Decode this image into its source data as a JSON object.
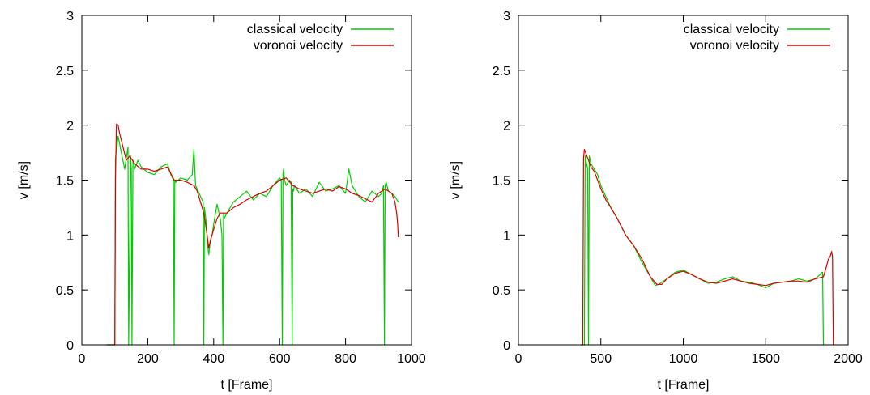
{
  "chart_data": [
    {
      "type": "line",
      "xlabel": "t [Frame]",
      "ylabel": "v [m/s]",
      "xlim": [
        0,
        1000
      ],
      "ylim": [
        0,
        3
      ],
      "xticks": [
        0,
        200,
        400,
        600,
        800,
        1000
      ],
      "yticks": [
        0,
        0.5,
        1,
        1.5,
        2,
        2.5,
        3
      ],
      "xtick_labels": [
        "0",
        "200",
        "400",
        "600",
        "800",
        "1000"
      ],
      "ytick_labels": [
        "0",
        "0.5",
        "1",
        "1.5",
        "2",
        "2.5",
        "3"
      ],
      "legend_position": "top-right",
      "grid": false,
      "series": [
        {
          "name": "classical velocity",
          "color": "#00cc00",
          "x": [
            75,
            100,
            102,
            110,
            120,
            130,
            135,
            140,
            142,
            148,
            150,
            152,
            155,
            158,
            160,
            170,
            180,
            200,
            220,
            240,
            260,
            270,
            278,
            280,
            282,
            285,
            300,
            320,
            335,
            340,
            345,
            350,
            360,
            368,
            370,
            372,
            378,
            380,
            385,
            390,
            395,
            400,
            410,
            420,
            425,
            428,
            430,
            432,
            440,
            460,
            480,
            500,
            520,
            540,
            560,
            580,
            600,
            605,
            608,
            610,
            612,
            615,
            620,
            630,
            635,
            638,
            640,
            642,
            645,
            660,
            680,
            700,
            720,
            740,
            760,
            780,
            800,
            810,
            820,
            840,
            860,
            880,
            900,
            910,
            915,
            918,
            920,
            923,
            930,
            940,
            950,
            960
          ],
          "y": [
            0,
            0,
            1.7,
            1.9,
            1.75,
            1.6,
            1.7,
            1.8,
            0,
            1.72,
            1.6,
            0,
            1.68,
            1.65,
            1.6,
            1.68,
            1.62,
            1.57,
            1.55,
            1.62,
            1.65,
            1.55,
            1.5,
            0,
            1.5,
            1.48,
            1.52,
            1.5,
            1.55,
            1.78,
            1.45,
            1.42,
            1.35,
            1.3,
            0,
            1.25,
            1.1,
            0.95,
            0.82,
            0.95,
            1.0,
            1.1,
            1.28,
            1.15,
            1.0,
            0,
            1.2,
            1.15,
            1.2,
            1.3,
            1.35,
            1.4,
            1.32,
            1.38,
            1.35,
            1.45,
            1.52,
            1.5,
            0,
            1.55,
            1.6,
            1.5,
            1.45,
            1.5,
            1.48,
            0,
            1.42,
            1.4,
            1.45,
            1.38,
            1.42,
            1.35,
            1.48,
            1.4,
            1.42,
            1.45,
            1.38,
            1.6,
            1.45,
            1.35,
            1.3,
            1.4,
            1.35,
            1.38,
            1.45,
            0,
            1.45,
            1.48,
            1.4,
            1.38,
            1.35,
            1.3
          ]
        },
        {
          "name": "voronoi velocity",
          "color": "#dd0000",
          "x": [
            75,
            100,
            102,
            105,
            110,
            115,
            125,
            135,
            145,
            160,
            180,
            200,
            220,
            240,
            260,
            280,
            300,
            320,
            340,
            350,
            360,
            370,
            380,
            385,
            390,
            400,
            410,
            420,
            440,
            460,
            480,
            500,
            520,
            540,
            560,
            580,
            600,
            620,
            640,
            660,
            680,
            700,
            720,
            740,
            760,
            780,
            800,
            820,
            840,
            860,
            880,
            900,
            920,
            940,
            950,
            955,
            958,
            960
          ],
          "y": [
            0,
            0,
            1.5,
            2.01,
            2.0,
            1.92,
            1.8,
            1.68,
            1.72,
            1.65,
            1.6,
            1.6,
            1.58,
            1.6,
            1.62,
            1.5,
            1.5,
            1.48,
            1.45,
            1.4,
            1.3,
            1.2,
            1.0,
            0.88,
            0.95,
            1.05,
            1.15,
            1.2,
            1.2,
            1.25,
            1.28,
            1.32,
            1.35,
            1.38,
            1.4,
            1.45,
            1.5,
            1.52,
            1.45,
            1.42,
            1.4,
            1.38,
            1.4,
            1.42,
            1.4,
            1.44,
            1.42,
            1.38,
            1.36,
            1.33,
            1.3,
            1.38,
            1.42,
            1.38,
            1.3,
            1.2,
            1.1,
            0.98
          ]
        }
      ]
    },
    {
      "type": "line",
      "xlabel": "t [Frame]",
      "ylabel": "v [m/s]",
      "xlim": [
        0,
        2000
      ],
      "ylim": [
        0,
        3
      ],
      "xticks": [
        0,
        500,
        1000,
        1500,
        2000
      ],
      "yticks": [
        0,
        0.5,
        1,
        1.5,
        2,
        2.5,
        3
      ],
      "xtick_labels": [
        "0",
        "500",
        "1000",
        "1500",
        "2000"
      ],
      "ytick_labels": [
        "0",
        "0.5",
        "1",
        "1.5",
        "2",
        "2.5",
        "3"
      ],
      "legend_position": "top-right",
      "grid": false,
      "series": [
        {
          "name": "classical velocity",
          "color": "#00cc00",
          "x": [
            380,
            400,
            405,
            420,
            425,
            430,
            440,
            460,
            480,
            500,
            530,
            560,
            600,
            650,
            700,
            750,
            800,
            830,
            850,
            900,
            950,
            1000,
            1050,
            1100,
            1150,
            1200,
            1250,
            1300,
            1350,
            1400,
            1450,
            1500,
            1550,
            1600,
            1650,
            1700,
            1750,
            1800,
            1830,
            1840,
            1845,
            1850
          ],
          "y": [
            0,
            0,
            1.72,
            1.6,
            0,
            1.72,
            1.65,
            1.6,
            1.55,
            1.45,
            1.35,
            1.25,
            1.15,
            1.0,
            0.9,
            0.75,
            0.62,
            0.54,
            0.55,
            0.6,
            0.66,
            0.68,
            0.64,
            0.6,
            0.56,
            0.57,
            0.6,
            0.62,
            0.58,
            0.57,
            0.55,
            0.52,
            0.56,
            0.57,
            0.58,
            0.6,
            0.58,
            0.6,
            0.64,
            0.66,
            0.66,
            0
          ]
        },
        {
          "name": "voronoi velocity",
          "color": "#dd0000",
          "x": [
            380,
            390,
            395,
            400,
            420,
            440,
            460,
            480,
            500,
            530,
            560,
            600,
            650,
            700,
            750,
            800,
            840,
            870,
            900,
            950,
            1000,
            1050,
            1100,
            1150,
            1200,
            1250,
            1300,
            1350,
            1400,
            1450,
            1500,
            1550,
            1600,
            1650,
            1700,
            1750,
            1800,
            1850,
            1870,
            1880,
            1890,
            1900,
            1905,
            1910
          ],
          "y": [
            0,
            0,
            1.7,
            1.78,
            1.7,
            1.62,
            1.58,
            1.5,
            1.42,
            1.32,
            1.25,
            1.15,
            1.0,
            0.9,
            0.78,
            0.62,
            0.55,
            0.55,
            0.6,
            0.65,
            0.67,
            0.64,
            0.6,
            0.57,
            0.56,
            0.58,
            0.6,
            0.58,
            0.56,
            0.55,
            0.54,
            0.56,
            0.57,
            0.58,
            0.58,
            0.57,
            0.6,
            0.62,
            0.72,
            0.78,
            0.8,
            0.85,
            0.8,
            0
          ]
        }
      ]
    }
  ]
}
